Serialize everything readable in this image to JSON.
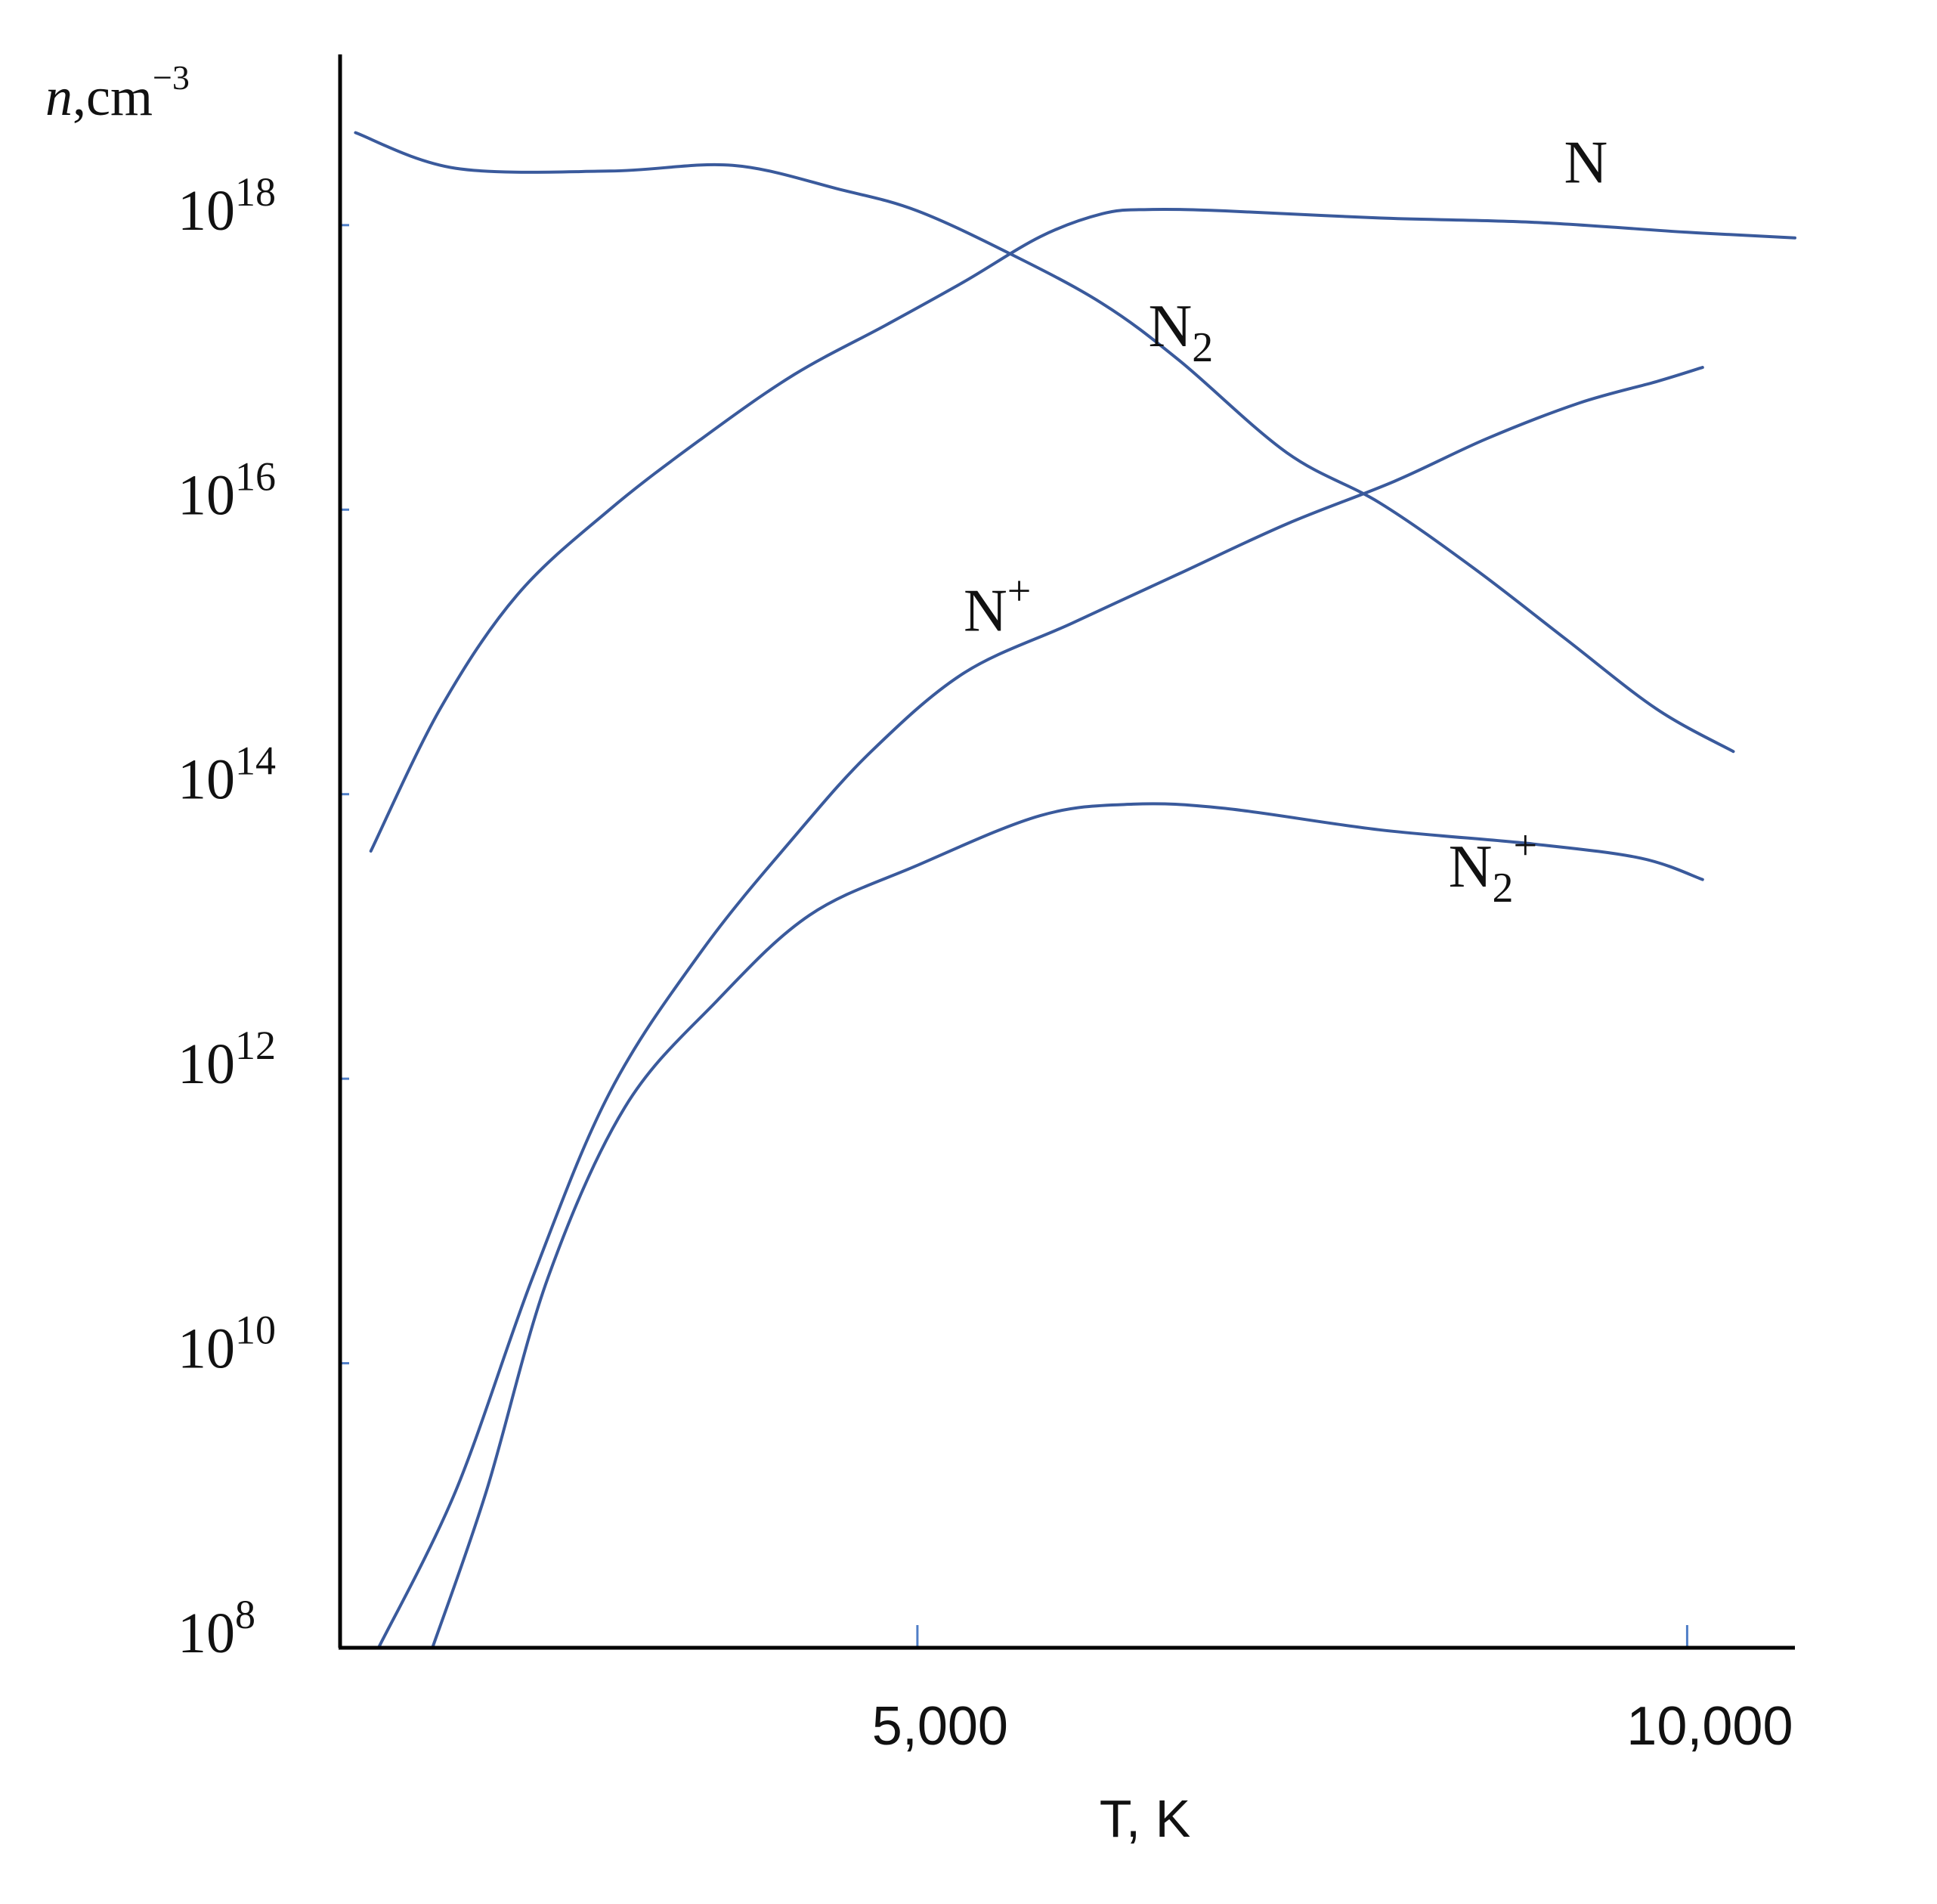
{
  "chart_data": {
    "type": "line",
    "title": "",
    "xlabel": "T, K",
    "ylabel": {
      "base": "n",
      "unit": ",cm",
      "exponent": "−3"
    },
    "x_axis": {
      "lim": [
        1250,
        10700
      ],
      "ticks": [
        {
          "value": 5000,
          "label": "5,000"
        },
        {
          "value": 10000,
          "label": "10,000"
        }
      ]
    },
    "y_axis": {
      "scale": "log",
      "lim_exponent": [
        8,
        19.2
      ],
      "ticks": [
        {
          "exponent": 8,
          "base": "10",
          "sup": "8"
        },
        {
          "exponent": 10,
          "base": "10",
          "sup": "10"
        },
        {
          "exponent": 12,
          "base": "10",
          "sup": "12"
        },
        {
          "exponent": 14,
          "base": "10",
          "sup": "14"
        },
        {
          "exponent": 16,
          "base": "10",
          "sup": "16"
        },
        {
          "exponent": 18,
          "base": "10",
          "sup": "18"
        }
      ]
    },
    "grid": false,
    "series": [
      {
        "name": "N",
        "label": {
          "base": "N",
          "sub": "",
          "sup": "",
          "at_x": 9200,
          "at_log_y": 18.3
        },
        "points": [
          [
            1450,
            13.6
          ],
          [
            1900,
            14.6
          ],
          [
            2400,
            15.4
          ],
          [
            3000,
            16.0
          ],
          [
            3600,
            16.5
          ],
          [
            4200,
            16.95
          ],
          [
            4800,
            17.3
          ],
          [
            5300,
            17.6
          ],
          [
            5800,
            17.92
          ],
          [
            6200,
            18.08
          ],
          [
            6500,
            18.11
          ],
          [
            7000,
            18.1
          ],
          [
            8000,
            18.05
          ],
          [
            9000,
            18.02
          ],
          [
            10000,
            17.95
          ],
          [
            10700,
            17.91
          ]
        ]
      },
      {
        "name": "N2",
        "label": {
          "base": "N",
          "sub": "2",
          "sup": "",
          "at_x": 6500,
          "at_log_y": 17.15
        },
        "points": [
          [
            1350,
            18.65
          ],
          [
            2000,
            18.4
          ],
          [
            3000,
            18.38
          ],
          [
            3800,
            18.42
          ],
          [
            4500,
            18.25
          ],
          [
            5000,
            18.1
          ],
          [
            5600,
            17.8
          ],
          [
            6200,
            17.45
          ],
          [
            6700,
            17.05
          ],
          [
            7400,
            16.4
          ],
          [
            8000,
            16.05
          ],
          [
            8600,
            15.6
          ],
          [
            9200,
            15.1
          ],
          [
            9800,
            14.6
          ],
          [
            10300,
            14.3
          ]
        ]
      },
      {
        "name": "N+",
        "label": {
          "base": "N",
          "sub": "",
          "sup": "+",
          "at_x": 5300,
          "at_log_y": 15.15
        },
        "points": [
          [
            1500,
            8.0
          ],
          [
            2000,
            9.1
          ],
          [
            2500,
            10.6
          ],
          [
            3000,
            11.9
          ],
          [
            3600,
            12.9
          ],
          [
            4200,
            13.7
          ],
          [
            4700,
            14.3
          ],
          [
            5300,
            14.85
          ],
          [
            6000,
            15.2
          ],
          [
            6700,
            15.55
          ],
          [
            7400,
            15.9
          ],
          [
            8100,
            16.2
          ],
          [
            8700,
            16.5
          ],
          [
            9300,
            16.75
          ],
          [
            9800,
            16.9
          ],
          [
            10100,
            17.0
          ]
        ]
      },
      {
        "name": "N2+",
        "label": {
          "base": "N",
          "sub": "2",
          "sup": "+",
          "at_x": 8450,
          "at_log_y": 13.35
        },
        "points": [
          [
            1850,
            8.0
          ],
          [
            2200,
            9.1
          ],
          [
            2600,
            10.6
          ],
          [
            3100,
            11.8
          ],
          [
            3700,
            12.55
          ],
          [
            4300,
            13.15
          ],
          [
            5000,
            13.5
          ],
          [
            5800,
            13.85
          ],
          [
            6400,
            13.93
          ],
          [
            7000,
            13.9
          ],
          [
            8000,
            13.75
          ],
          [
            9000,
            13.65
          ],
          [
            9700,
            13.55
          ],
          [
            10100,
            13.4
          ]
        ]
      }
    ]
  },
  "colors": {
    "series": "#3a5a9c",
    "axis": "#000000",
    "tick": "#4f7ec7",
    "text": "#111111"
  }
}
